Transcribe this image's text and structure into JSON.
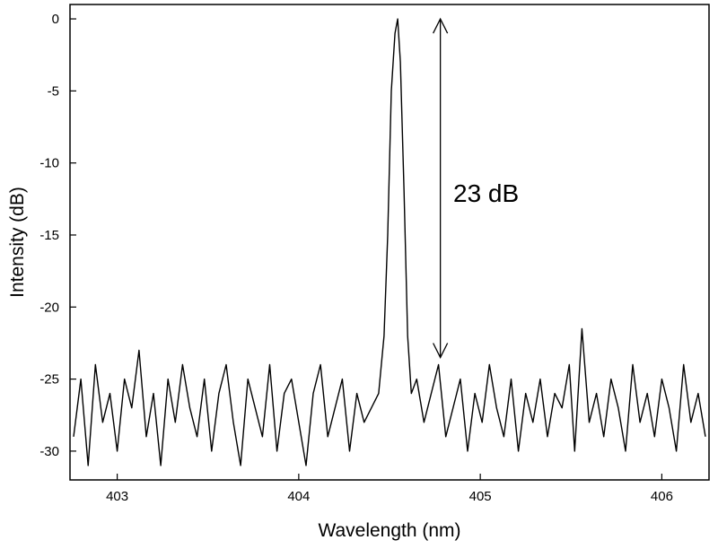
{
  "chart_data": {
    "type": "line",
    "title": "",
    "xlabel": "Wavelength (nm)",
    "ylabel": "Intensity (dB)",
    "xlim": [
      402.74,
      406.26
    ],
    "ylim": [
      -32,
      1
    ],
    "xticks": [
      403,
      404,
      405,
      406
    ],
    "xtick_labels": [
      "403",
      "404",
      "405",
      "406"
    ],
    "yticks": [
      0,
      -5,
      -10,
      -15,
      -20,
      -25,
      -30
    ],
    "ytick_labels": [
      "0",
      "-5",
      "-10",
      "-15",
      "-20",
      "-25",
      "-30"
    ],
    "grid": false,
    "legend": "none",
    "line_color": "#000000",
    "series": [
      {
        "x": [
          402.76,
          402.8,
          402.84,
          402.88,
          402.92,
          402.96,
          403.0,
          403.04,
          403.08,
          403.12,
          403.16,
          403.2,
          403.24,
          403.28,
          403.32,
          403.36,
          403.4,
          403.44,
          403.48,
          403.52,
          403.56,
          403.6,
          403.64,
          403.68,
          403.72,
          403.76,
          403.8,
          403.84,
          403.88,
          403.92,
          403.96,
          404.0,
          404.04,
          404.08,
          404.12,
          404.16,
          404.2,
          404.24,
          404.28,
          404.32,
          404.36,
          404.4,
          404.44,
          404.47,
          404.49,
          404.51,
          404.53,
          404.545,
          404.56,
          404.58,
          404.6,
          404.62,
          404.65,
          404.69,
          404.73,
          404.77,
          404.81,
          404.85,
          404.89,
          404.93,
          404.97,
          405.01,
          405.05,
          405.09,
          405.13,
          405.17,
          405.21,
          405.25,
          405.29,
          405.33,
          405.37,
          405.41,
          405.45,
          405.49,
          405.52,
          405.56,
          405.6,
          405.64,
          405.68,
          405.72,
          405.76,
          405.8,
          405.84,
          405.88,
          405.92,
          405.96,
          406.0,
          406.04,
          406.08,
          406.12,
          406.16,
          406.2,
          406.24
        ],
        "y": [
          -29,
          -25,
          -31,
          -24,
          -28,
          -26,
          -30,
          -25,
          -27,
          -23,
          -29,
          -26,
          -31,
          -25,
          -28,
          -24,
          -27,
          -29,
          -25,
          -30,
          -26,
          -24,
          -28,
          -31,
          -25,
          -27,
          -29,
          -24,
          -30,
          -26,
          -25,
          -28,
          -31,
          -26,
          -24,
          -29,
          -27,
          -25,
          -30,
          -26,
          -28,
          -27,
          -26,
          -22,
          -15,
          -5,
          -1,
          0,
          -3,
          -12,
          -22,
          -26,
          -25,
          -28,
          -26,
          -24,
          -29,
          -27,
          -25,
          -30,
          -26,
          -28,
          -24,
          -27,
          -29,
          -25,
          -30,
          -26,
          -28,
          -25,
          -29,
          -26,
          -27,
          -24,
          -30,
          -21.5,
          -28,
          -26,
          -29,
          -25,
          -27,
          -30,
          -24,
          -28,
          -26,
          -29,
          -25,
          -27,
          -30,
          -24,
          -28,
          -26,
          -29
        ]
      }
    ],
    "annotation": {
      "text": "23 dB",
      "x": 404.78,
      "y_top": 0,
      "y_bottom": -23.5
    }
  }
}
